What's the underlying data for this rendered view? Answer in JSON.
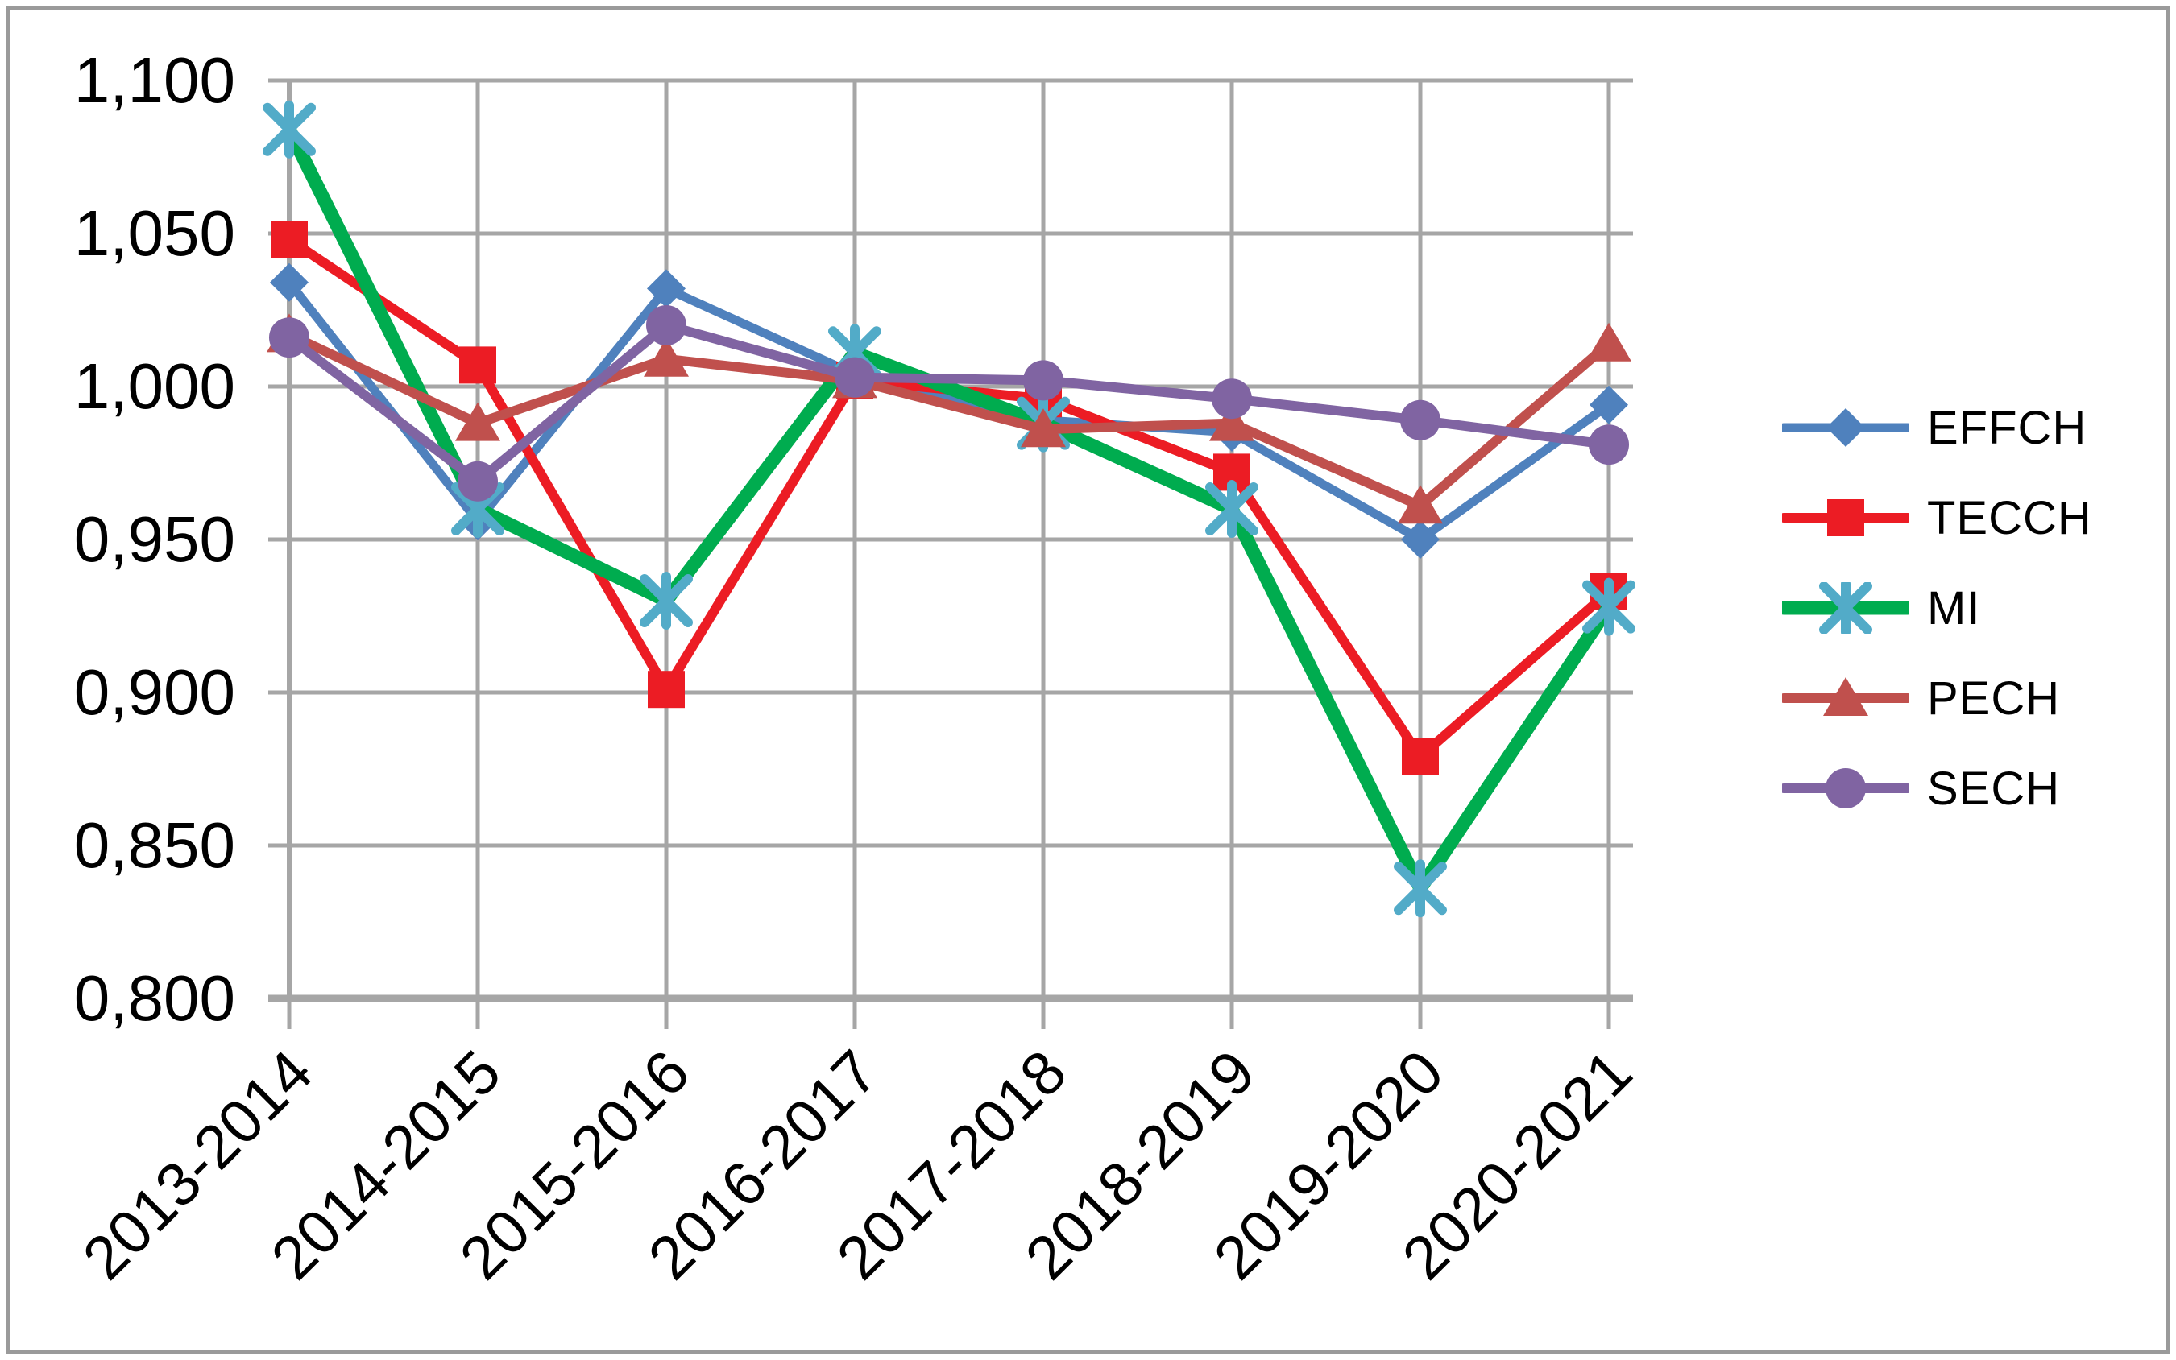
{
  "chart_data": {
    "type": "line",
    "title": "",
    "xlabel": "",
    "ylabel": "",
    "grid": true,
    "legend_position": "right",
    "ylim": [
      0.8,
      1.1
    ],
    "categories": [
      "2013-2014",
      "2014-2015",
      "2015-2016",
      "2016-2017",
      "2017-2018",
      "2018-2019",
      "2019-2020",
      "2020-2021"
    ],
    "y_ticks": [
      {
        "value": 1.1,
        "label": "1,100"
      },
      {
        "value": 1.05,
        "label": "1,050"
      },
      {
        "value": 1.0,
        "label": "1,000"
      },
      {
        "value": 0.95,
        "label": "0,950"
      },
      {
        "value": 0.9,
        "label": "0,900"
      },
      {
        "value": 0.85,
        "label": "0,850"
      },
      {
        "value": 0.8,
        "label": "0,800"
      }
    ],
    "series": [
      {
        "name": "EFFCH",
        "color": "#4F81BD",
        "marker": "diamond",
        "marker_color": "#4F81BD",
        "line_width": 11,
        "values": [
          1.034,
          0.956,
          1.032,
          1.004,
          0.989,
          0.985,
          0.95,
          0.994
        ]
      },
      {
        "name": "TECCH",
        "color": "#EC1C24",
        "marker": "square",
        "marker_color": "#EC1C24",
        "line_width": 12,
        "values": [
          1.048,
          1.007,
          0.901,
          1.002,
          0.996,
          0.972,
          0.879,
          0.933
        ]
      },
      {
        "name": "MI",
        "color": "#00AC4F",
        "marker": "star6",
        "marker_color": "#52ABC8",
        "line_width": 17,
        "values": [
          1.084,
          0.96,
          0.93,
          1.011,
          0.988,
          0.96,
          0.836,
          0.928
        ]
      },
      {
        "name": "PECH",
        "color": "#C0504D",
        "marker": "triangle",
        "marker_color": "#C0504D",
        "line_width": 12,
        "values": [
          1.017,
          0.988,
          1.009,
          1.002,
          0.986,
          0.988,
          0.961,
          1.014
        ]
      },
      {
        "name": "SECH",
        "color": "#8064A2",
        "marker": "circle",
        "marker_color": "#8064A2",
        "line_width": 12,
        "values": [
          1.016,
          0.969,
          1.02,
          1.003,
          1.002,
          0.996,
          0.989,
          0.981
        ]
      }
    ]
  },
  "styles": {
    "grid_color": "#A6A6A6",
    "axis_color": "#A6A6A6",
    "frame_color": "#9A9A9A",
    "text_color": "#000000",
    "background": "#FFFFFF"
  }
}
